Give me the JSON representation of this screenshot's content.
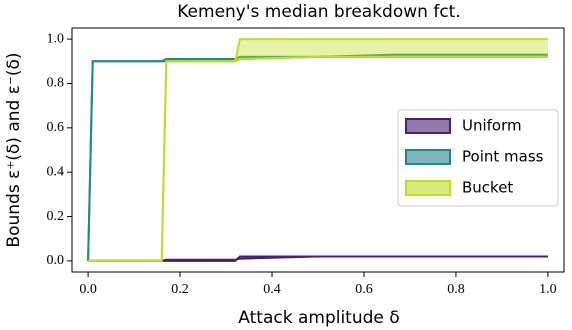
{
  "chart_data": {
    "type": "line-band",
    "title": "Kemeny's median breakdown fct.",
    "x_label": "Attack amplitude δ",
    "y_label": "Bounds ε⁺(δ) and ε⁻(δ)",
    "x": [
      0,
      0.01,
      0.02,
      0.16,
      0.17,
      0.32,
      0.33,
      0.5,
      0.67,
      0.83,
      1.0
    ],
    "series": [
      {
        "name": "Uniform",
        "color": "#46216e",
        "values": [
          0,
          0,
          0,
          0,
          0,
          0,
          0.02,
          0.02,
          0.02,
          0.02,
          0.02
        ],
        "lower": [
          0,
          0,
          0,
          0,
          0.005,
          0.005,
          0.01,
          0.02,
          0.02,
          0.02,
          0.02
        ]
      },
      {
        "name": "Point mass",
        "color": "#25858e",
        "values": [
          0,
          0.9,
          0.9,
          0.9,
          0.91,
          0.91,
          0.92,
          0.92,
          0.93,
          0.93,
          0.93
        ],
        "lower": [
          0,
          0.9,
          0.9,
          0.9,
          0.9,
          0.9,
          0.91,
          0.92,
          0.92,
          0.92,
          0.92
        ]
      },
      {
        "name": "Bucket",
        "color": "#bddf26",
        "values": [
          0,
          0,
          0,
          0,
          0.9,
          0.9,
          1.0,
          1.0,
          1.0,
          1.0,
          1.0
        ],
        "lower": [
          0,
          0,
          0,
          0,
          0.9,
          0.9,
          0.91,
          0.92,
          0.92,
          0.92,
          0.92
        ]
      }
    ],
    "xlim": [
      -0.035,
      1.035
    ],
    "ylim": [
      -0.05,
      1.05
    ],
    "xticks": [
      {
        "value": 0,
        "label": "0.0"
      },
      {
        "value": 0.2,
        "label": "0.2"
      },
      {
        "value": 0.4,
        "label": "0.4"
      },
      {
        "value": 0.6,
        "label": "0.6"
      },
      {
        "value": 0.8,
        "label": "0.8"
      },
      {
        "value": 1.0,
        "label": "1.0"
      }
    ],
    "yticks": [
      {
        "value": 0,
        "label": "0.0"
      },
      {
        "value": 0.2,
        "label": "0.2"
      },
      {
        "value": 0.4,
        "label": "0.4"
      },
      {
        "value": 0.6,
        "label": "0.6"
      },
      {
        "value": 0.8,
        "label": "0.8"
      },
      {
        "value": 1.0,
        "label": "1.0"
      }
    ],
    "legend": "center right"
  }
}
